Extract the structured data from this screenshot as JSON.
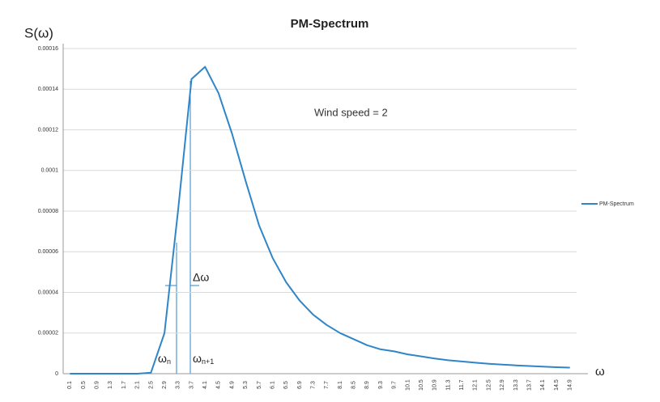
{
  "chart_data": {
    "type": "line",
    "title": "PM-Spectrum",
    "y_label": "S(ω)",
    "x_label": "ω",
    "annotations": {
      "wind_speed": "Wind speed = 2",
      "delta_omega": "Δω",
      "omega_n": {
        "base": "ω",
        "sub": "n"
      },
      "omega_n1": {
        "base": "ω",
        "sub": "n+1"
      }
    },
    "categories": [
      "0.1",
      "0.5",
      "0.9",
      "1.3",
      "1.7",
      "2.1",
      "2.5",
      "2.9",
      "3.3",
      "3.7",
      "4.1",
      "4.5",
      "4.9",
      "5.3",
      "5.7",
      "6.1",
      "6.5",
      "6.9",
      "7.3",
      "7.7",
      "8.1",
      "8.5",
      "8.9",
      "9.3",
      "9.7",
      "10.1",
      "10.5",
      "10.9",
      "11.3",
      "11.7",
      "12.1",
      "12.5",
      "12.9",
      "13.3",
      "13.7",
      "14.1",
      "14.5",
      "14.9"
    ],
    "series": [
      {
        "name": "PM-Spectrum",
        "color": "#2e86c9",
        "values": [
          0,
          0,
          0,
          0,
          0,
          0,
          5e-07,
          2e-05,
          8e-05,
          0.000145,
          0.000151,
          0.000138,
          0.000118,
          9.5e-05,
          7.3e-05,
          5.7e-05,
          4.5e-05,
          3.6e-05,
          2.9e-05,
          2.4e-05,
          2e-05,
          1.7e-05,
          1.4e-05,
          1.2e-05,
          1.1e-05,
          9.5e-06,
          8.5e-06,
          7.5e-06,
          6.6e-06,
          6e-06,
          5.4e-06,
          4.9e-06,
          4.5e-06,
          4.1e-06,
          3.8e-06,
          3.5e-06,
          3.2e-06,
          3e-06
        ]
      }
    ],
    "ylim": [
      0,
      0.00016
    ],
    "yticks": [
      0,
      2e-05,
      4e-05,
      6e-05,
      8e-05,
      0.0001,
      0.00012,
      0.00014,
      0.00016
    ],
    "grid": true,
    "legend": "right"
  }
}
